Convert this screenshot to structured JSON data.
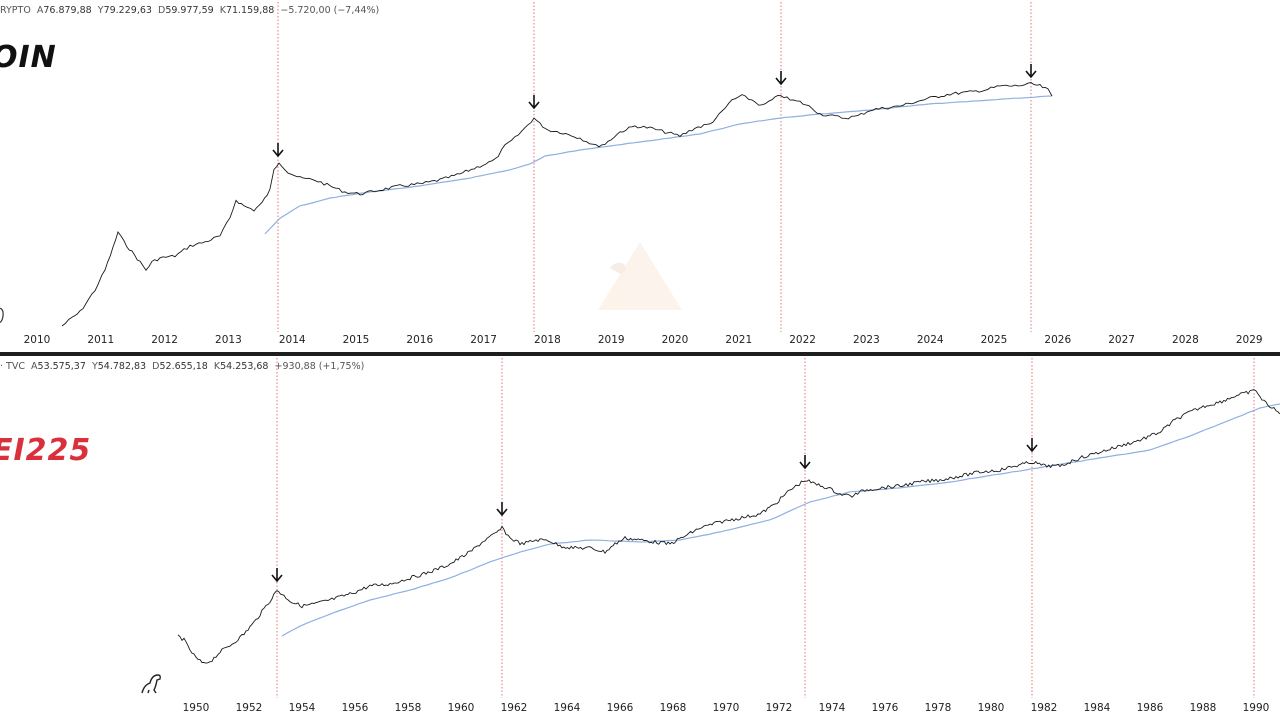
{
  "top_panel": {
    "header": {
      "symbol_suffix": "RYPTO",
      "open_label": "A",
      "open": "76.879,88",
      "high_label": "Y",
      "high": "79.229,63",
      "low_label": "D",
      "low": "59.977,59",
      "close_label": "K",
      "close": "71.159,88",
      "change": "−5.720,00 (−7,44%)"
    },
    "title": "OIN",
    "x_ticks": [
      "2010",
      "2011",
      "2012",
      "2013",
      "2014",
      "2015",
      "2016",
      "2017",
      "2018",
      "2019",
      "2020",
      "2021",
      "2022",
      "2023",
      "2024",
      "2025",
      "2026",
      "2027",
      "2028",
      "2029"
    ],
    "peak_markers": [
      "2014",
      "2018",
      "2022",
      "2025"
    ]
  },
  "bottom_panel": {
    "header": {
      "symbol_suffix": "· TVC",
      "open_label": "A",
      "open": "53.575,37",
      "high_label": "Y",
      "high": "54.782,83",
      "low_label": "D",
      "low": "52.655,18",
      "close_label": "K",
      "close": "54.253,68",
      "change": "+930,88 (+1,75%)"
    },
    "title": "EI225",
    "x_ticks": [
      "1950",
      "1952",
      "1954",
      "1956",
      "1958",
      "1960",
      "1962",
      "1964",
      "1966",
      "1968",
      "1970",
      "1972",
      "1974",
      "1976",
      "1978",
      "1980",
      "1982",
      "1984",
      "1986",
      "1988",
      "1990"
    ],
    "peak_markers": [
      "1953",
      "1961",
      "1973",
      "1981"
    ]
  },
  "colors": {
    "price_line": "#1a1a1a",
    "moving_average": "#8fb0e0",
    "cycle_marker": "#e05050",
    "nikkei_title": "#d9303c",
    "separator": "#1e1e1e"
  },
  "icons": {
    "watermark": "pyramid-logo-icon",
    "brand": "dinosaur-icon",
    "arrow": "arrow-down-icon"
  },
  "chart_data": [
    {
      "type": "line",
      "title": "OIN",
      "x_axis": "year",
      "series": [
        {
          "values_x": [
            2010.9,
            2011.2,
            2011.45,
            2011.75,
            2012.0,
            2012.5,
            2013.0,
            2013.3,
            2013.7,
            2013.95,
            2014.3,
            2014.8,
            2015.0,
            2015.5,
            2016.0,
            2016.5,
            2017.0,
            2017.4,
            2017.75,
            2017.97,
            2018.3,
            2018.7,
            2018.95,
            2019.5,
            2019.8,
            2020.2,
            2020.6,
            2021.0,
            2021.3,
            2021.6,
            2021.9,
            2022.2,
            2022.5,
            2022.8,
            2023.0,
            2023.5,
            2024.0,
            2024.3,
            2024.8,
            2025.0,
            2025.4,
            2025.8,
            2026.1
          ]
        },
        {
          "name": "",
          "kind": "moving-average"
        }
      ],
      "cycle_peaks": [
        "2014",
        "2018",
        "2022",
        "2025"
      ]
    },
    {
      "type": "line",
      "title": "EI225",
      "x_axis": "year",
      "series": [
        {
          "values_x": [
            1949.7,
            1950.3,
            1951.0,
            1952.0,
            1953.0,
            1953.5,
            1955.0,
            1958.0,
            1960.0,
            1961.5,
            1962.5,
            1964.0,
            1965.5,
            1967.0,
            1968.0,
            1970.0,
            1971.5,
            1973.0,
            1974.5,
            1976.0,
            1978.0,
            1980.0,
            1981.5,
            1982.5,
            1984.0,
            1986.0,
            1988.0,
            1989.9,
            1990.5
          ]
        },
        {
          "name": "",
          "kind": "moving-average"
        }
      ],
      "cycle_peaks": [
        "1953",
        "1961",
        "1973",
        "1981"
      ]
    }
  ]
}
